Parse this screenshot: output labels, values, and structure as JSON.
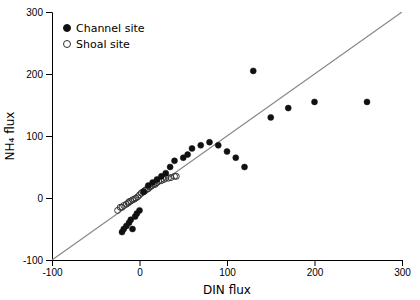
{
  "chart_data": {
    "type": "scatter",
    "xlabel": "DIN flux",
    "ylabel": "NH₄ flux",
    "xlim": [
      -100,
      300
    ],
    "ylim": [
      -100,
      300
    ],
    "xticks": [
      -100,
      0,
      100,
      200,
      300
    ],
    "yticks": [
      -100,
      0,
      100,
      200,
      300
    ],
    "grid": false,
    "legend": "upper-left",
    "series": [
      {
        "name": "Channel site",
        "type": "scatter",
        "marker": "circle",
        "color": "#111111",
        "x": [
          -20,
          -18,
          -15,
          -12,
          -10,
          -8,
          -5,
          -3,
          0,
          5,
          10,
          15,
          20,
          25,
          30,
          35,
          40,
          50,
          55,
          60,
          70,
          80,
          90,
          100,
          110,
          120,
          130,
          150,
          170,
          200,
          260
        ],
        "values": [
          -55,
          -50,
          -45,
          -40,
          -35,
          -50,
          -30,
          -25,
          -20,
          10,
          20,
          25,
          30,
          35,
          40,
          50,
          60,
          65,
          70,
          80,
          85,
          90,
          85,
          75,
          65,
          50,
          205,
          130,
          145,
          155,
          155
        ]
      },
      {
        "name": "Shoal site",
        "type": "scatter",
        "marker": "circle-open",
        "color": "#333333",
        "x": [
          -25,
          -22,
          -20,
          -18,
          -15,
          -13,
          -12,
          -10,
          -8,
          -6,
          -4,
          -2,
          0,
          2,
          4,
          6,
          8,
          10,
          12,
          14,
          16,
          18,
          20,
          22,
          25,
          28,
          30,
          33,
          36,
          40,
          42
        ],
        "values": [
          -20,
          -15,
          -15,
          -12,
          -10,
          -8,
          -6,
          -5,
          -3,
          -2,
          0,
          2,
          5,
          8,
          10,
          12,
          14,
          15,
          18,
          20,
          22,
          22,
          25,
          27,
          28,
          30,
          32,
          32,
          33,
          35,
          35
        ]
      },
      {
        "type": "line",
        "color": "#888888",
        "line_style": "solid",
        "x": [
          -100,
          300
        ],
        "values": [
          -100,
          300
        ]
      }
    ]
  }
}
